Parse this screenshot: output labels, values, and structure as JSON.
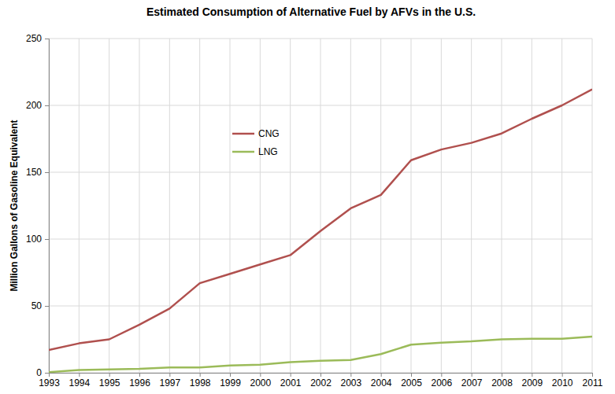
{
  "chart_data": {
    "type": "line",
    "title": "Estimated Consumption of Alternative Fuel by AFVs in the U.S.",
    "y_label": "Million Gallons of Gasoline Equivalent",
    "categories": [
      "1993",
      "1994",
      "1995",
      "1996",
      "1997",
      "1998",
      "1999",
      "2000",
      "2001",
      "2002",
      "2003",
      "2004",
      "2005",
      "2006",
      "2007",
      "2008",
      "2009",
      "2010",
      "2011"
    ],
    "series": [
      {
        "name": "CNG",
        "color": "#b0504e",
        "values": [
          17,
          22,
          25,
          36,
          48,
          67,
          74,
          81,
          88,
          106,
          123,
          133,
          159,
          167,
          172,
          179,
          190,
          200,
          212
        ]
      },
      {
        "name": "LNG",
        "color": "#9bbb59",
        "values": [
          0.5,
          2,
          2.5,
          3,
          4,
          4,
          5.5,
          6,
          8,
          9,
          9.5,
          14,
          21,
          22.5,
          23.5,
          25,
          25.5,
          25.5,
          27
        ]
      }
    ],
    "ylim": [
      0,
      250
    ],
    "yticks": [
      0,
      50,
      100,
      150,
      200,
      250
    ],
    "grid": true,
    "legend": "upper left"
  }
}
